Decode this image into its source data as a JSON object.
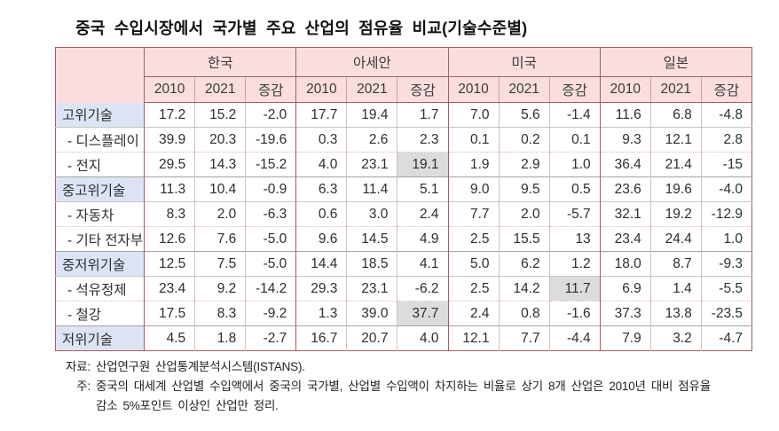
{
  "title": "중국 수입시장에서 국가별 주요 산업의 점유율 비교(기술수준별)",
  "table": {
    "country_groups": [
      "한국",
      "아세안",
      "미국",
      "일본"
    ],
    "year_headers": [
      "2010",
      "2021",
      "증감"
    ],
    "rows": [
      {
        "label": "고위기술",
        "type": "category",
        "values": [
          "17.2",
          "15.2",
          "-2.0",
          "17.7",
          "19.4",
          "1.7",
          "7.0",
          "5.6",
          "-1.4",
          "11.6",
          "6.8",
          "-4.8"
        ],
        "highlights": []
      },
      {
        "label": "- 디스플레이",
        "type": "sub",
        "values": [
          "39.9",
          "20.3",
          "-19.6",
          "0.3",
          "2.6",
          "2.3",
          "0.1",
          "0.2",
          "0.1",
          "9.3",
          "12.1",
          "2.8"
        ],
        "highlights": []
      },
      {
        "label": "- 전지",
        "type": "sub",
        "values": [
          "29.5",
          "14.3",
          "-15.2",
          "4.0",
          "23.1",
          "19.1",
          "1.9",
          "2.9",
          "1.0",
          "36.4",
          "21.4",
          "-15"
        ],
        "highlights": [
          5
        ]
      },
      {
        "label": "중고위기술",
        "type": "category",
        "values": [
          "11.3",
          "10.4",
          "-0.9",
          "6.3",
          "11.4",
          "5.1",
          "9.0",
          "9.5",
          "0.5",
          "23.6",
          "19.6",
          "-4.0"
        ],
        "highlights": []
      },
      {
        "label": "- 자동차",
        "type": "sub",
        "values": [
          "8.3",
          "2.0",
          "-6.3",
          "0.6",
          "3.0",
          "2.4",
          "7.7",
          "2.0",
          "-5.7",
          "32.1",
          "19.2",
          "-12.9"
        ],
        "highlights": []
      },
      {
        "label": "- 기타 전자부품",
        "type": "sub",
        "values": [
          "12.6",
          "7.6",
          "-5.0",
          "9.6",
          "14.5",
          "4.9",
          "2.5",
          "15.5",
          "13",
          "23.4",
          "24.4",
          "1.0"
        ],
        "highlights": []
      },
      {
        "label": "중저위기술",
        "type": "category",
        "values": [
          "12.5",
          "7.5",
          "-5.0",
          "14.4",
          "18.5",
          "4.1",
          "5.0",
          "6.2",
          "1.2",
          "18.0",
          "8.7",
          "-9.3"
        ],
        "highlights": []
      },
      {
        "label": "- 석유정제",
        "type": "sub",
        "values": [
          "23.4",
          "9.2",
          "-14.2",
          "29.3",
          "23.1",
          "-6.2",
          "2.5",
          "14.2",
          "11.7",
          "6.9",
          "1.4",
          "-5.5"
        ],
        "highlights": [
          8
        ]
      },
      {
        "label": "- 철강",
        "type": "sub",
        "values": [
          "17.5",
          "8.3",
          "-9.2",
          "1.3",
          "39.0",
          "37.7",
          "2.4",
          "0.8",
          "-1.6",
          "37.3",
          "13.8",
          "-23.5"
        ],
        "highlights": [
          5
        ]
      },
      {
        "label": "저위기술",
        "type": "category",
        "values": [
          "4.5",
          "1.8",
          "-2.7",
          "16.7",
          "20.7",
          "4.0",
          "12.1",
          "7.7",
          "-4.4",
          "7.9",
          "3.2",
          "-4.7"
        ],
        "highlights": []
      }
    ]
  },
  "notes": {
    "source_label": "자료:",
    "source_text": "산업연구원 산업통계분석시스템(ISTANS).",
    "note_label": "주:",
    "note_line1": "중국의 대세계 산업별 수입액에서 중국의 국가별, 산업별 수입액이 차지하는 비율로 상기 8개 산업은 2010년 대비 점유율",
    "note_line2": "감소 5%포인트 이상인 산업만 정리."
  },
  "colors": {
    "header_bg": "#fadedd",
    "category_label_bg": "#dce4f4",
    "highlight_bg": "#dcdcdc",
    "border_dark": "#9d6161",
    "border_light_pink": "#ddbcbc",
    "row_line_gray": "#a3a3a3",
    "text": "#2e2e2e"
  }
}
